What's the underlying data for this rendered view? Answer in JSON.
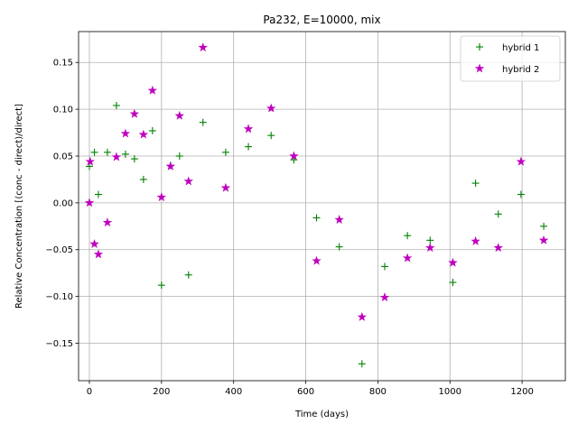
{
  "chart_data": {
    "type": "scatter",
    "title": "Pa232, E=10000, mix",
    "xlabel": "Time (days)",
    "ylabel": "Relative Concentration [(conc - direct)/direct]",
    "xlim": [
      -30,
      1320
    ],
    "ylim": [
      -0.19,
      0.183
    ],
    "xticks": [
      0,
      200,
      400,
      600,
      800,
      1000,
      1200
    ],
    "xtick_labels": [
      "0",
      "200",
      "400",
      "600",
      "800",
      "1000",
      "1200"
    ],
    "yticks": [
      -0.15,
      -0.1,
      -0.05,
      0.0,
      0.05,
      0.1,
      0.15
    ],
    "ytick_labels": [
      "−0.15",
      "−0.10",
      "−0.05",
      "0.00",
      "0.05",
      "0.10",
      "0.15"
    ],
    "grid": true,
    "legend_position": "top-right",
    "series": [
      {
        "name": "hybrid 1",
        "marker": "plus",
        "color": "#008000",
        "points": [
          [
            0,
            0.039
          ],
          [
            14,
            0.054
          ],
          [
            25,
            0.009
          ],
          [
            50,
            0.054
          ],
          [
            75,
            0.104
          ],
          [
            100,
            0.052
          ],
          [
            125,
            0.047
          ],
          [
            150,
            0.025
          ],
          [
            175,
            0.077
          ],
          [
            200,
            -0.088
          ],
          [
            225,
            0.04
          ],
          [
            250,
            0.05
          ],
          [
            275,
            -0.077
          ],
          [
            315,
            0.086
          ],
          [
            378,
            0.054
          ],
          [
            441,
            0.06
          ],
          [
            504,
            0.072
          ],
          [
            567,
            0.046
          ],
          [
            630,
            -0.016
          ],
          [
            693,
            -0.047
          ],
          [
            756,
            -0.172
          ],
          [
            819,
            -0.068
          ],
          [
            882,
            -0.035
          ],
          [
            945,
            -0.04
          ],
          [
            1008,
            -0.085
          ],
          [
            1071,
            0.021
          ],
          [
            1134,
            -0.012
          ],
          [
            1197,
            0.009
          ],
          [
            1260,
            -0.025
          ]
        ]
      },
      {
        "name": "hybrid 2",
        "marker": "star",
        "color": "#bf00bf",
        "points": [
          [
            0,
            0.0
          ],
          [
            2,
            0.044
          ],
          [
            14,
            -0.044
          ],
          [
            25,
            -0.055
          ],
          [
            50,
            -0.021
          ],
          [
            75,
            0.049
          ],
          [
            100,
            0.074
          ],
          [
            125,
            0.095
          ],
          [
            150,
            0.073
          ],
          [
            175,
            0.12
          ],
          [
            200,
            0.006
          ],
          [
            225,
            0.039
          ],
          [
            250,
            0.093
          ],
          [
            275,
            0.023
          ],
          [
            315,
            0.166
          ],
          [
            378,
            0.016
          ],
          [
            441,
            0.079
          ],
          [
            504,
            0.101
          ],
          [
            567,
            0.05
          ],
          [
            630,
            -0.062
          ],
          [
            693,
            -0.018
          ],
          [
            756,
            -0.122
          ],
          [
            819,
            -0.101
          ],
          [
            882,
            -0.059
          ],
          [
            945,
            -0.048
          ],
          [
            1008,
            -0.064
          ],
          [
            1071,
            -0.041
          ],
          [
            1134,
            -0.048
          ],
          [
            1197,
            0.044
          ],
          [
            1260,
            -0.04
          ]
        ]
      }
    ]
  }
}
